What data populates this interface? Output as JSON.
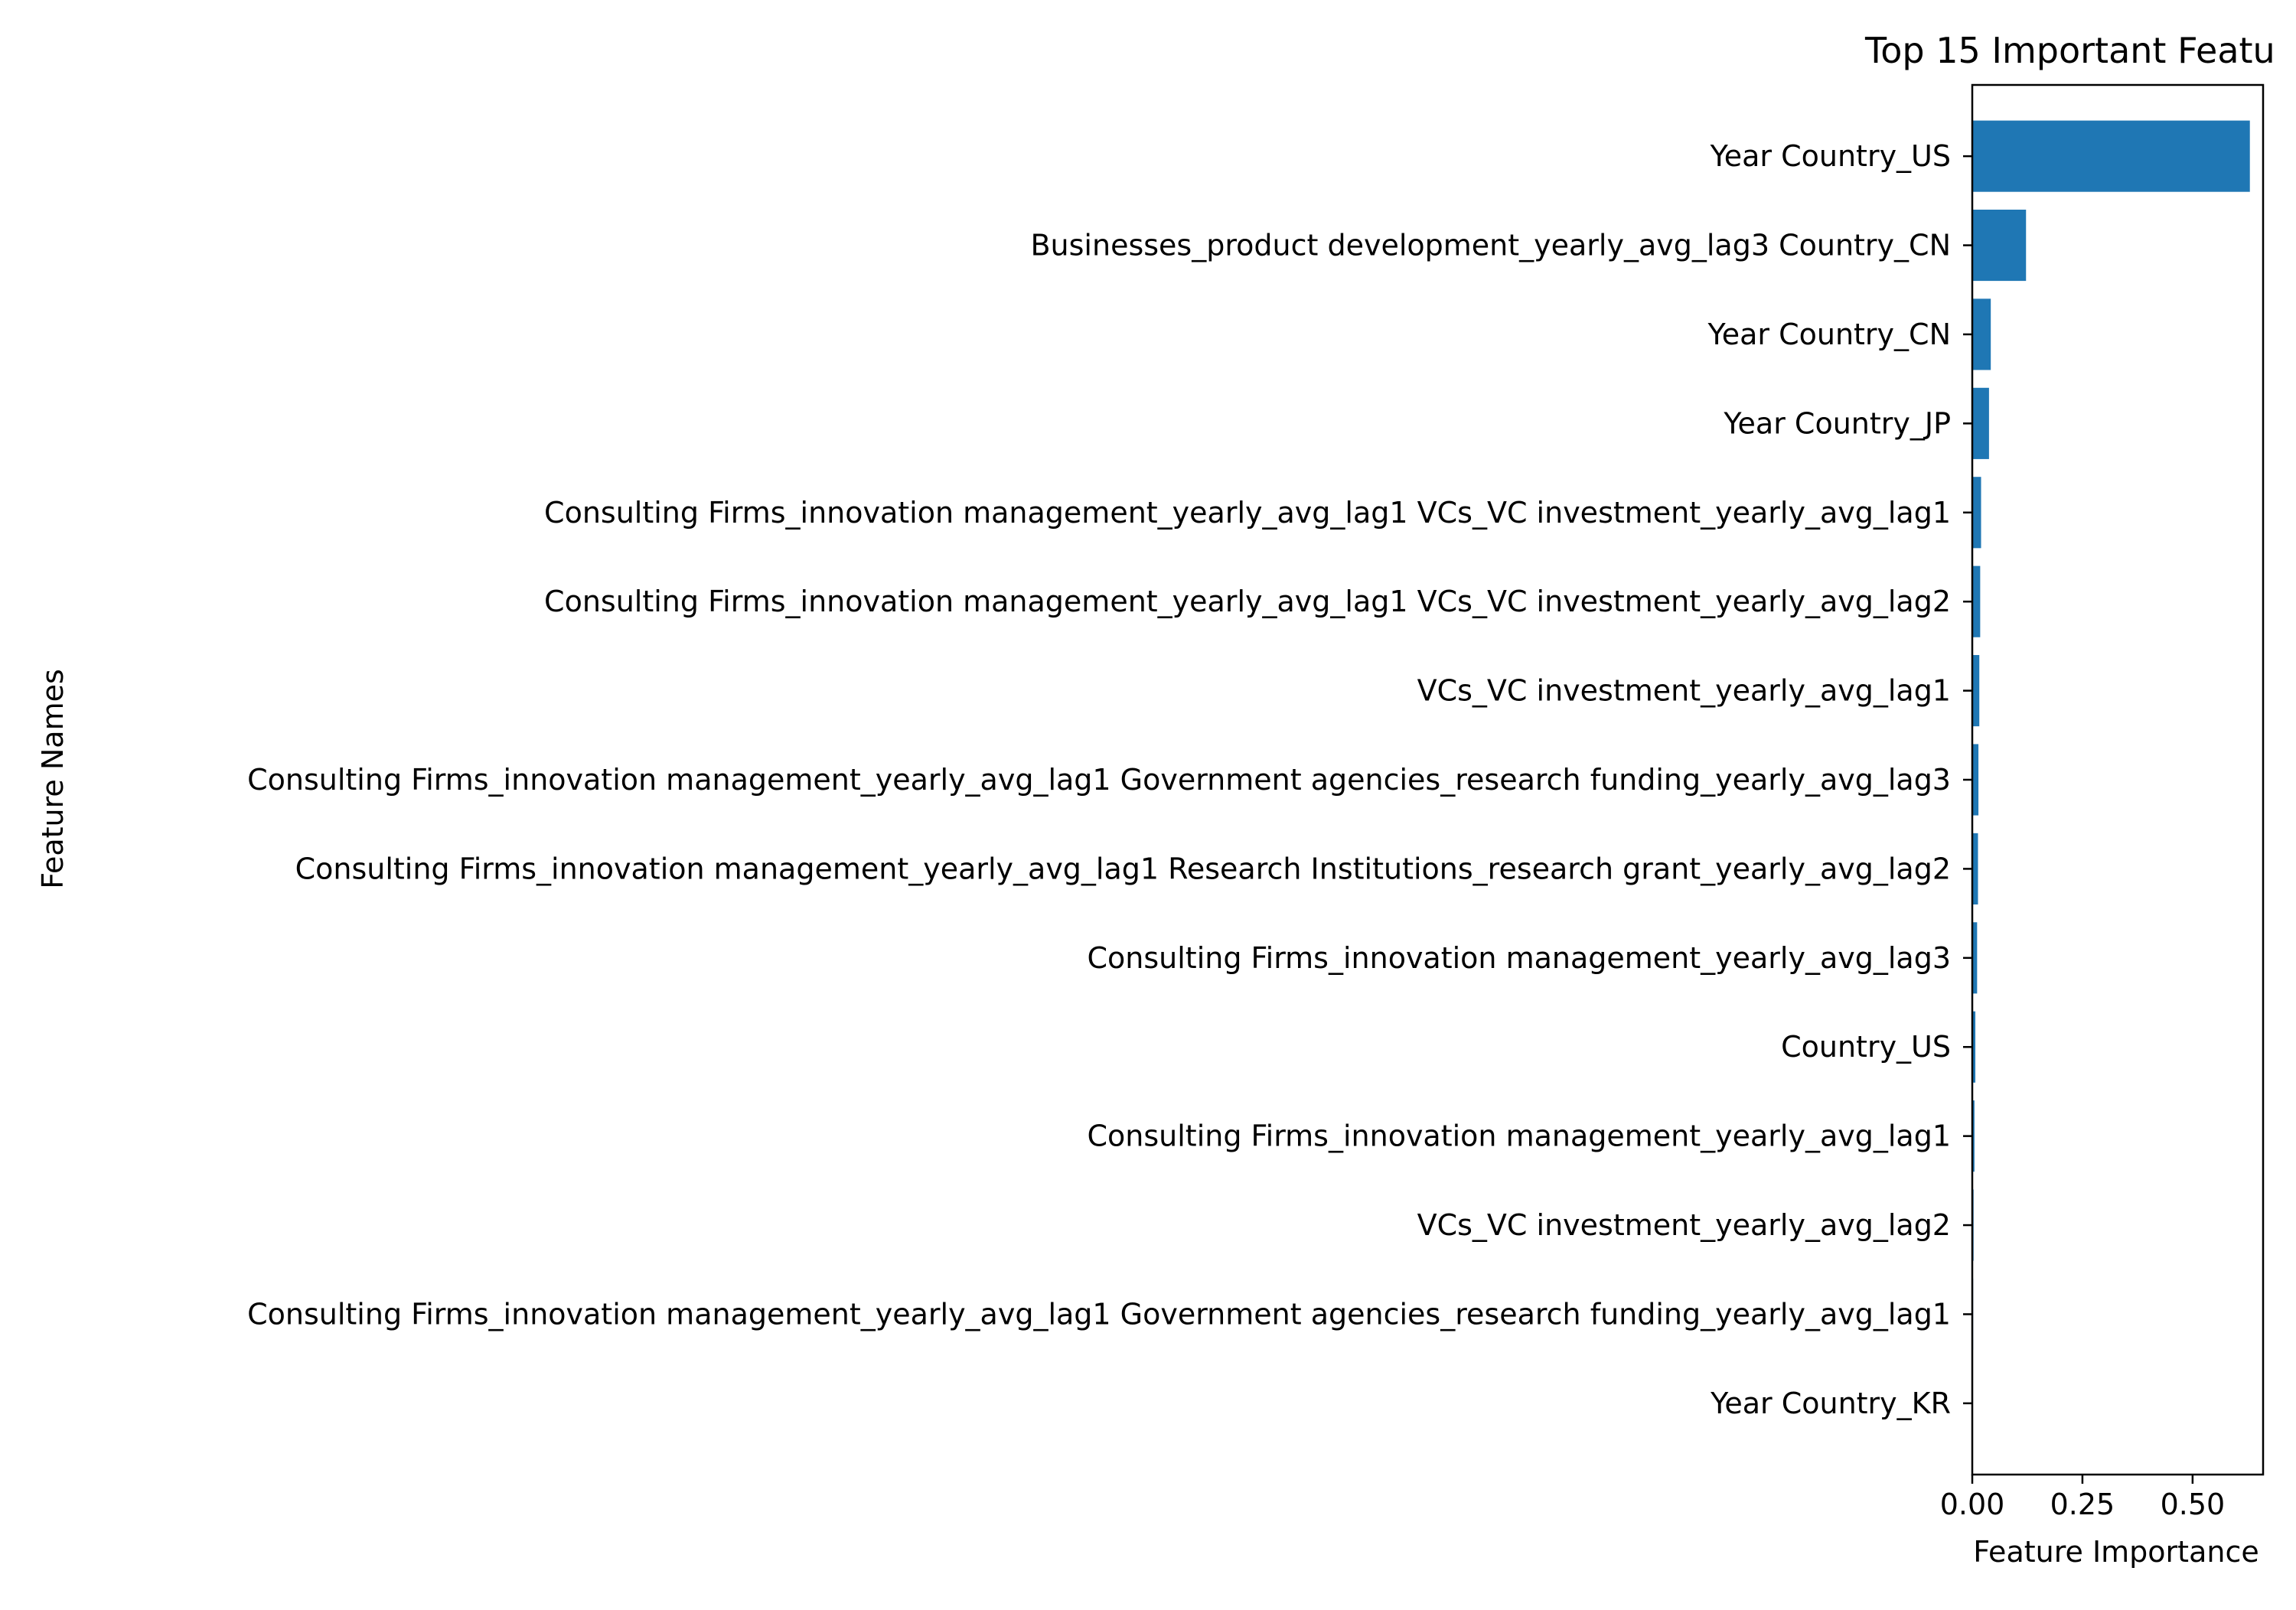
{
  "chart_data": {
    "type": "bar",
    "orientation": "horizontal",
    "title": "Top 15 Important Featu",
    "xlabel": "Feature Importance",
    "ylabel": "Feature Names",
    "xlim": [
      0,
      0.66
    ],
    "xticks": [
      {
        "value": 0.0,
        "label": "0.00"
      },
      {
        "value": 0.25,
        "label": "0.25"
      },
      {
        "value": 0.5,
        "label": "0.50"
      }
    ],
    "categories": [
      "Year Country_US",
      "Businesses_product development_yearly_avg_lag3 Country_CN",
      "Year Country_CN",
      "Year Country_JP",
      "Consulting Firms_innovation management_yearly_avg_lag1 VCs_VC investment_yearly_avg_lag1",
      "Consulting Firms_innovation management_yearly_avg_lag1 VCs_VC investment_yearly_avg_lag2",
      "VCs_VC investment_yearly_avg_lag1",
      "Consulting Firms_innovation management_yearly_avg_lag1 Government agencies_research funding_yearly_avg_lag3",
      "Consulting Firms_innovation management_yearly_avg_lag1 Research Institutions_research grant_yearly_avg_lag2",
      "Consulting Firms_innovation management_yearly_avg_lag3",
      "Country_US",
      "Consulting Firms_innovation management_yearly_avg_lag1",
      "VCs_VC investment_yearly_avg_lag2",
      "Consulting Firms_innovation management_yearly_avg_lag1 Government agencies_research funding_yearly_avg_lag1",
      "Year Country_KR"
    ],
    "values": [
      0.63,
      0.122,
      0.042,
      0.038,
      0.02,
      0.018,
      0.016,
      0.014,
      0.013,
      0.011,
      0.007,
      0.005,
      0.003,
      0.002,
      0.001
    ],
    "bar_color": "#1f77b4",
    "grid": false,
    "legend": "none"
  }
}
